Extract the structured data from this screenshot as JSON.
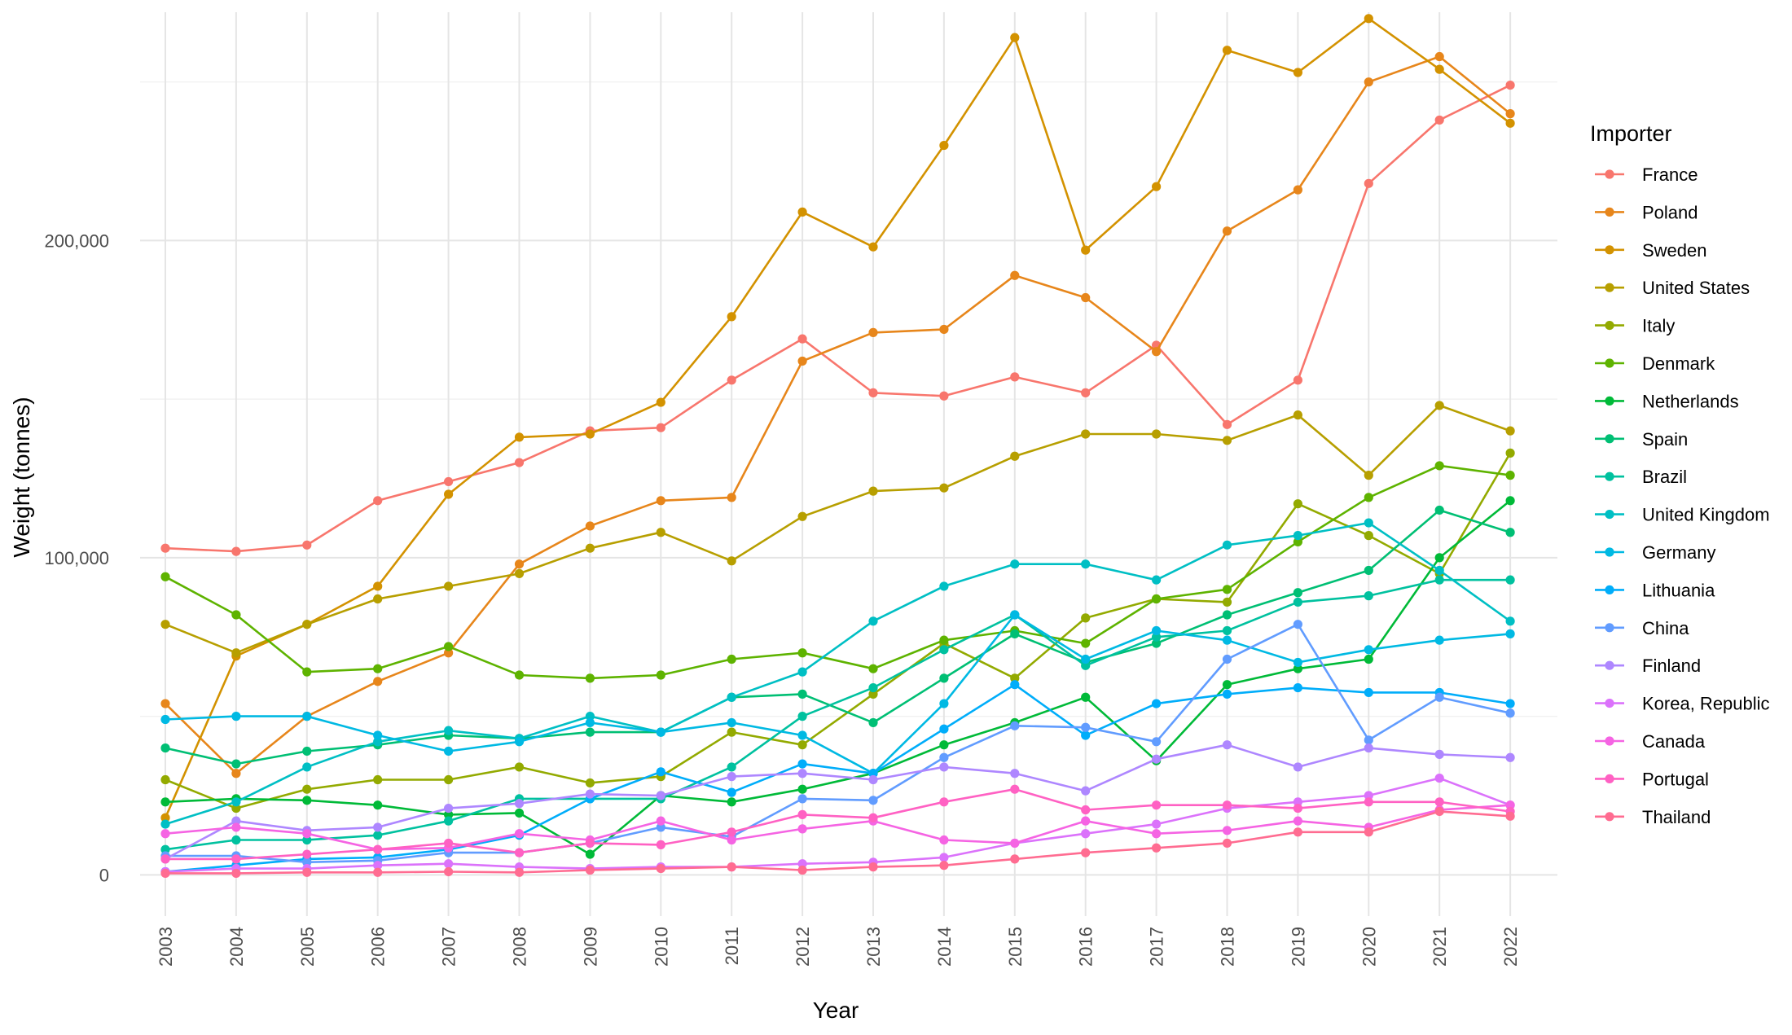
{
  "chart_data": {
    "type": "line",
    "xlabel": "Year",
    "ylabel": "Weight (tonnes)",
    "legend_title": "Importer",
    "legend_position": "right",
    "grid": true,
    "ylim": [
      -13000,
      272000
    ],
    "y_ticks": [
      0,
      100000,
      200000
    ],
    "y_tick_labels": [
      "0",
      "100,000",
      "200,000"
    ],
    "x": [
      "2003",
      "2004",
      "2005",
      "2006",
      "2007",
      "2008",
      "2009",
      "2010",
      "2011",
      "2012",
      "2013",
      "2014",
      "2015",
      "2016",
      "2017",
      "2018",
      "2019",
      "2020",
      "2021",
      "2022"
    ],
    "series": [
      {
        "name": "France",
        "color": "#F8766D",
        "values": [
          103000,
          102000,
          104000,
          118000,
          124000,
          130000,
          140000,
          141000,
          156000,
          169000,
          152000,
          151000,
          157000,
          152000,
          167000,
          142000,
          156000,
          218000,
          238000,
          249000
        ]
      },
      {
        "name": "Poland",
        "color": "#E7861B",
        "values": [
          54000,
          32000,
          50000,
          61000,
          70000,
          98000,
          110000,
          118000,
          119000,
          162000,
          171000,
          172000,
          189000,
          182000,
          165000,
          203000,
          216000,
          250000,
          258000,
          240000
        ]
      },
      {
        "name": "Sweden",
        "color": "#D39200",
        "values": [
          18000,
          69000,
          79000,
          91000,
          120000,
          138000,
          139000,
          149000,
          176000,
          209000,
          198000,
          230000,
          264000,
          197000,
          217000,
          260000,
          253000,
          270000,
          254000,
          237000
        ]
      },
      {
        "name": "United States",
        "color": "#B79F00",
        "values": [
          79000,
          70000,
          79000,
          87000,
          91000,
          95000,
          103000,
          108000,
          99000,
          113000,
          121000,
          122000,
          132000,
          139000,
          139000,
          137000,
          145000,
          126000,
          148000,
          140000
        ]
      },
      {
        "name": "Italy",
        "color": "#93AA00",
        "values": [
          30000,
          21000,
          27000,
          30000,
          30000,
          34000,
          29000,
          31000,
          45000,
          41000,
          57000,
          73000,
          62000,
          81000,
          87000,
          86000,
          117000,
          107000,
          95000,
          133000
        ]
      },
      {
        "name": "Denmark",
        "color": "#5EB300",
        "values": [
          94000,
          82000,
          64000,
          65000,
          72000,
          63000,
          62000,
          63000,
          68000,
          70000,
          65000,
          74000,
          77000,
          73000,
          87000,
          90000,
          105000,
          119000,
          129000,
          126000
        ]
      },
      {
        "name": "Netherlands",
        "color": "#00BA38",
        "values": [
          23000,
          24000,
          23500,
          22000,
          19000,
          19500,
          6500,
          25000,
          23000,
          27000,
          32000,
          41000,
          48000,
          56000,
          36000,
          60000,
          65000,
          68000,
          100000,
          118000
        ]
      },
      {
        "name": "Spain",
        "color": "#00BF74",
        "values": [
          40000,
          35000,
          39000,
          41000,
          44000,
          43000,
          45000,
          45000,
          56000,
          57000,
          48000,
          62000,
          76000,
          67000,
          73000,
          82000,
          89000,
          96000,
          115000,
          108000
        ]
      },
      {
        "name": "Brazil",
        "color": "#00C19F",
        "values": [
          8000,
          11000,
          11000,
          12500,
          17000,
          24000,
          24000,
          24000,
          34000,
          50000,
          59000,
          71000,
          82000,
          66000,
          75000,
          77000,
          86000,
          88000,
          93000,
          93000
        ]
      },
      {
        "name": "United Kingdom",
        "color": "#00BFC4",
        "values": [
          16000,
          23000,
          34000,
          42000,
          45500,
          43000,
          50000,
          45000,
          56000,
          64000,
          80000,
          91000,
          98000,
          98000,
          93000,
          104000,
          107000,
          111000,
          96000,
          80000
        ]
      },
      {
        "name": "Germany",
        "color": "#00B9E3",
        "values": [
          49000,
          50000,
          50000,
          44000,
          39000,
          42000,
          48000,
          45000,
          48000,
          44000,
          32000,
          54000,
          82000,
          68000,
          77000,
          74000,
          67000,
          71000,
          74000,
          76000
        ]
      },
      {
        "name": "Lithuania",
        "color": "#00ADFA",
        "values": [
          1000,
          3000,
          5000,
          5500,
          8000,
          12500,
          24000,
          32500,
          26000,
          35000,
          32000,
          46000,
          60000,
          44000,
          54000,
          57000,
          59000,
          57500,
          57500,
          54000
        ]
      },
      {
        "name": "China",
        "color": "#619CFF",
        "values": [
          6000,
          6000,
          4000,
          4500,
          7000,
          7000,
          10000,
          15000,
          12000,
          24000,
          23500,
          37000,
          47000,
          46500,
          42000,
          68000,
          79000,
          42500,
          56000,
          51000
        ]
      },
      {
        "name": "Finland",
        "color": "#AE87FF",
        "values": [
          5000,
          17000,
          14000,
          15000,
          21000,
          22500,
          25500,
          25000,
          31000,
          32000,
          30000,
          34000,
          32000,
          26500,
          36500,
          41000,
          34000,
          40000,
          38000,
          37000
        ]
      },
      {
        "name": "Korea, Republic",
        "color": "#DB72FB",
        "values": [
          1000,
          2000,
          2000,
          3000,
          3500,
          2500,
          2000,
          2500,
          2500,
          3500,
          4000,
          5500,
          10000,
          13000,
          16000,
          21000,
          23000,
          25000,
          30500,
          22000
        ]
      },
      {
        "name": "Canada",
        "color": "#F564E3",
        "values": [
          13000,
          15000,
          13000,
          8000,
          8500,
          13000,
          11000,
          17000,
          11000,
          14500,
          17000,
          11000,
          10000,
          17000,
          13000,
          14000,
          17000,
          15000,
          20500,
          22000
        ]
      },
      {
        "name": "Portugal",
        "color": "#FF61C3",
        "values": [
          5000,
          5000,
          6500,
          8000,
          10000,
          7000,
          10000,
          9500,
          13500,
          19000,
          18000,
          23000,
          27000,
          20500,
          22000,
          22000,
          21000,
          23000,
          23000,
          20000
        ]
      },
      {
        "name": "Thailand",
        "color": "#FF6C91",
        "values": [
          500,
          500,
          800,
          800,
          1000,
          800,
          1500,
          2000,
          2500,
          1500,
          2500,
          3000,
          5000,
          7000,
          8500,
          10000,
          13500,
          13500,
          20000,
          18500
        ]
      }
    ]
  }
}
